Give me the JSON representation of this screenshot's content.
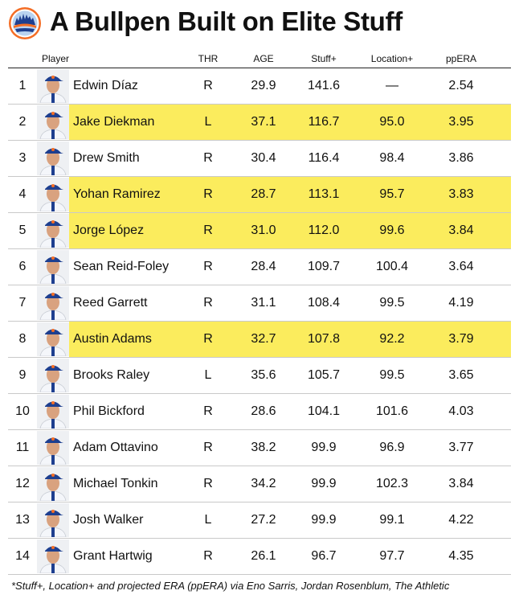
{
  "title": "A Bullpen Built on Elite Stuff",
  "logo_icon": "mets-team-logo",
  "colors": {
    "highlight": "#fbec5d",
    "cap_blue": "#1e3f8f",
    "cap_orange": "#f46d25"
  },
  "columns": {
    "player": "Player",
    "thr": "THR",
    "age": "AGE",
    "stuff": "Stuff+",
    "location": "Location+",
    "era": "ppERA"
  },
  "rows": [
    {
      "rank": "1",
      "name": "Edwin Díaz",
      "thr": "R",
      "age": "29.9",
      "stuff": "141.6",
      "location": "—",
      "era": "2.54",
      "highlight": false
    },
    {
      "rank": "2",
      "name": "Jake Diekman",
      "thr": "L",
      "age": "37.1",
      "stuff": "116.7",
      "location": "95.0",
      "era": "3.95",
      "highlight": true
    },
    {
      "rank": "3",
      "name": "Drew Smith",
      "thr": "R",
      "age": "30.4",
      "stuff": "116.4",
      "location": "98.4",
      "era": "3.86",
      "highlight": false
    },
    {
      "rank": "4",
      "name": "Yohan Ramirez",
      "thr": "R",
      "age": "28.7",
      "stuff": "113.1",
      "location": "95.7",
      "era": "3.83",
      "highlight": true
    },
    {
      "rank": "5",
      "name": "Jorge López",
      "thr": "R",
      "age": "31.0",
      "stuff": "112.0",
      "location": "99.6",
      "era": "3.84",
      "highlight": true
    },
    {
      "rank": "6",
      "name": "Sean Reid-Foley",
      "thr": "R",
      "age": "28.4",
      "stuff": "109.7",
      "location": "100.4",
      "era": "3.64",
      "highlight": false
    },
    {
      "rank": "7",
      "name": "Reed Garrett",
      "thr": "R",
      "age": "31.1",
      "stuff": "108.4",
      "location": "99.5",
      "era": "4.19",
      "highlight": false
    },
    {
      "rank": "8",
      "name": "Austin Adams",
      "thr": "R",
      "age": "32.7",
      "stuff": "107.8",
      "location": "92.2",
      "era": "3.79",
      "highlight": true
    },
    {
      "rank": "9",
      "name": "Brooks Raley",
      "thr": "L",
      "age": "35.6",
      "stuff": "105.7",
      "location": "99.5",
      "era": "3.65",
      "highlight": false
    },
    {
      "rank": "10",
      "name": "Phil Bickford",
      "thr": "R",
      "age": "28.6",
      "stuff": "104.1",
      "location": "101.6",
      "era": "4.03",
      "highlight": false
    },
    {
      "rank": "11",
      "name": "Adam Ottavino",
      "thr": "R",
      "age": "38.2",
      "stuff": "99.9",
      "location": "96.9",
      "era": "3.77",
      "highlight": false
    },
    {
      "rank": "12",
      "name": "Michael Tonkin",
      "thr": "R",
      "age": "34.2",
      "stuff": "99.9",
      "location": "102.3",
      "era": "3.84",
      "highlight": false
    },
    {
      "rank": "13",
      "name": "Josh Walker",
      "thr": "L",
      "age": "27.2",
      "stuff": "99.9",
      "location": "99.1",
      "era": "4.22",
      "highlight": false
    },
    {
      "rank": "14",
      "name": "Grant Hartwig",
      "thr": "R",
      "age": "26.1",
      "stuff": "96.7",
      "location": "97.7",
      "era": "4.35",
      "highlight": false
    }
  ],
  "footnote": "*Stuff+, Location+ and projected ERA (ppERA) via Eno Sarris, Jordan Rosenblum, The Athletic"
}
